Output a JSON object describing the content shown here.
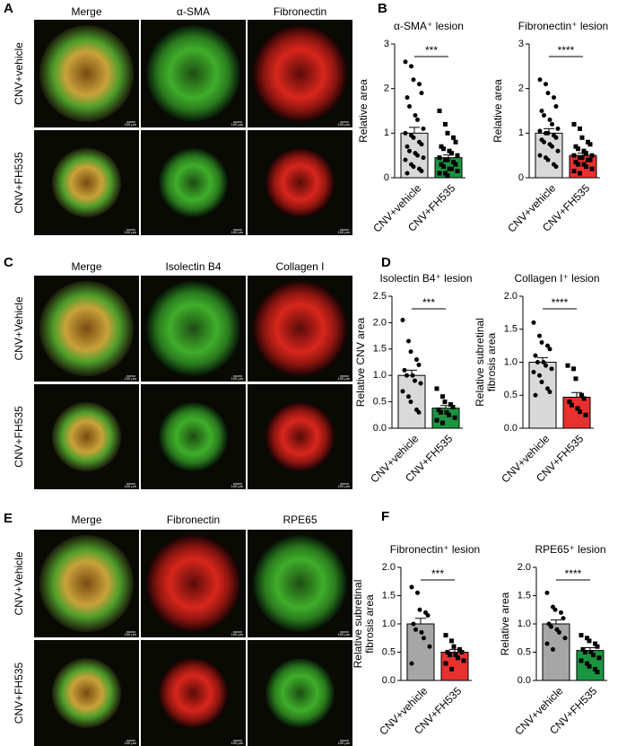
{
  "image_panels": [
    {
      "label": "A",
      "columns": [
        "Merge",
        "α-SMA",
        "Fibronectin"
      ],
      "rows": [
        "CNV+vehicle",
        "CNV+FH535"
      ]
    },
    {
      "label": "C",
      "columns": [
        "Merge",
        "Isolectin B4",
        "Collagen I"
      ],
      "rows": [
        "CNV+Vehicle",
        "CNV+FH535"
      ]
    },
    {
      "label": "E",
      "columns": [
        "Merge",
        "Fibronectin",
        "RPE65"
      ],
      "rows": [
        "CNV+Vehicle",
        "CNV+FH535"
      ]
    }
  ],
  "scale_bar_label": "100 μm",
  "chart_panel_labels": [
    "B",
    "D",
    "F"
  ],
  "chart_data": [
    {
      "type": "bar",
      "title": "α-SMA⁺ lesion",
      "y_label": [
        "Relative area"
      ],
      "categories": [
        "CNV+vehicle",
        "CNV+FH535"
      ],
      "colors": [
        "#d9d9d9",
        "#1a9641"
      ],
      "values": [
        1.0,
        0.45
      ],
      "errors": [
        0.13,
        0.06
      ],
      "points": [
        [
          2.6,
          2.5,
          2.2,
          2.1,
          1.9,
          1.8,
          1.6,
          1.4,
          1.3,
          1.1,
          1.0,
          0.95,
          0.9,
          0.8,
          0.75,
          0.7,
          0.6,
          0.55,
          0.5,
          0.45,
          0.4,
          0.3,
          0.25,
          0.2,
          0.15,
          0.1
        ],
        [
          1.5,
          1.2,
          1.0,
          0.9,
          0.8,
          0.7,
          0.65,
          0.6,
          0.55,
          0.5,
          0.45,
          0.4,
          0.4,
          0.35,
          0.3,
          0.3,
          0.25,
          0.2,
          0.2,
          0.15,
          0.1,
          0.1,
          0.05
        ]
      ],
      "ylim": [
        0,
        3
      ],
      "yticks": [
        0,
        1,
        2,
        3
      ],
      "significance": "***"
    },
    {
      "type": "bar",
      "title": "Fibronectin⁺ lesion",
      "y_label": [
        "Relative area"
      ],
      "categories": [
        "CNV+vehicle",
        "CNV+FH535"
      ],
      "colors": [
        "#d9d9d9",
        "#e8312f"
      ],
      "values": [
        1.0,
        0.5
      ],
      "errors": [
        0.1,
        0.05
      ],
      "points": [
        [
          2.2,
          2.1,
          1.9,
          1.8,
          1.6,
          1.5,
          1.4,
          1.3,
          1.2,
          1.1,
          1.05,
          1.0,
          1.0,
          0.95,
          0.9,
          0.85,
          0.8,
          0.75,
          0.7,
          0.6,
          0.5,
          0.45,
          0.4,
          0.3,
          0.25
        ],
        [
          1.2,
          1.1,
          0.9,
          0.8,
          0.75,
          0.7,
          0.65,
          0.6,
          0.55,
          0.5,
          0.5,
          0.45,
          0.45,
          0.4,
          0.4,
          0.35,
          0.3,
          0.3,
          0.25,
          0.2,
          0.15,
          0.1
        ]
      ],
      "ylim": [
        0,
        3
      ],
      "yticks": [
        0,
        1,
        2,
        3
      ],
      "significance": "****"
    },
    {
      "type": "bar",
      "title": "Isolectin B4⁺ lesion",
      "y_label": [
        "Relative CNV area"
      ],
      "categories": [
        "CNV+vehicle",
        "CNV+FH535"
      ],
      "colors": [
        "#d9d9d9",
        "#1a9641"
      ],
      "values": [
        1.0,
        0.38
      ],
      "errors": [
        0.1,
        0.05
      ],
      "points": [
        [
          2.05,
          1.65,
          1.45,
          1.3,
          1.2,
          1.1,
          1.0,
          1.0,
          0.9,
          0.85,
          0.7,
          0.6,
          0.5,
          0.35,
          0.3
        ],
        [
          0.75,
          0.6,
          0.5,
          0.45,
          0.4,
          0.35,
          0.3,
          0.3,
          0.25,
          0.2,
          0.15,
          0.1
        ]
      ],
      "ylim": [
        0,
        2.5
      ],
      "yticks": [
        {
          "value": 0,
          "label": "0.0"
        },
        0.5,
        {
          "value": 1,
          "label": "1.0"
        },
        1.5,
        {
          "value": 2,
          "label": "2.0"
        },
        2.5
      ],
      "significance": "***"
    },
    {
      "type": "bar",
      "title": "Collagen I⁺ lesion",
      "y_label": [
        "Relative subretinal",
        "fibrosis area"
      ],
      "categories": [
        "CNV+vehicle",
        "CNV+FH535"
      ],
      "colors": [
        "#d9d9d9",
        "#e8312f"
      ],
      "values": [
        1.0,
        0.47
      ],
      "errors": [
        0.07,
        0.07
      ],
      "points": [
        [
          1.6,
          1.4,
          1.3,
          1.25,
          1.2,
          1.1,
          1.0,
          1.0,
          0.95,
          0.9,
          0.85,
          0.8,
          0.7,
          0.6,
          0.55,
          0.5
        ],
        [
          0.95,
          0.9,
          0.75,
          0.5,
          0.45,
          0.4,
          0.35,
          0.3,
          0.25,
          0.2
        ]
      ],
      "ylim": [
        0,
        2
      ],
      "yticks": [
        {
          "value": 0,
          "label": "0.0"
        },
        0.5,
        {
          "value": 1,
          "label": "1.0"
        },
        1.5,
        {
          "value": 2,
          "label": "2.0"
        }
      ],
      "significance": "****"
    },
    {
      "type": "bar",
      "title": "Fibronectin⁺ lesion",
      "y_label": [
        "Relative subretinal",
        "fibrosis area"
      ],
      "categories": [
        "CNV+vehicle",
        "CNV+FH535"
      ],
      "colors": [
        "#a6a6a6",
        "#e8312f"
      ],
      "values": [
        1.0,
        0.5
      ],
      "errors": [
        0.1,
        0.05
      ],
      "points": [
        [
          1.65,
          1.55,
          1.25,
          1.2,
          1.15,
          1.0,
          0.9,
          0.85,
          0.75,
          0.6,
          0.3
        ],
        [
          0.8,
          0.7,
          0.6,
          0.55,
          0.5,
          0.5,
          0.45,
          0.45,
          0.4,
          0.35,
          0.3,
          0.2
        ]
      ],
      "ylim": [
        0,
        2
      ],
      "yticks": [
        {
          "value": 0,
          "label": "0.0"
        },
        0.5,
        {
          "value": 1,
          "label": "1.0"
        },
        1.5,
        {
          "value": 2,
          "label": "2.0"
        }
      ],
      "significance": "***"
    },
    {
      "type": "bar",
      "title": "RPE65⁺ lesion",
      "y_label": [
        "Relative area"
      ],
      "categories": [
        "CNV+vehicle",
        "CNV+FH535"
      ],
      "colors": [
        "#a6a6a6",
        "#1a9641"
      ],
      "values": [
        1.0,
        0.53
      ],
      "errors": [
        0.07,
        0.05
      ],
      "points": [
        [
          1.55,
          1.3,
          1.25,
          1.2,
          1.1,
          1.0,
          0.95,
          0.9,
          0.85,
          0.75,
          0.65,
          0.55
        ],
        [
          0.8,
          0.75,
          0.7,
          0.65,
          0.6,
          0.55,
          0.5,
          0.5,
          0.45,
          0.4,
          0.35,
          0.3,
          0.25,
          0.2,
          0.15
        ]
      ],
      "ylim": [
        0,
        2
      ],
      "yticks": [
        {
          "value": 0,
          "label": "0.0"
        },
        0.5,
        {
          "value": 1,
          "label": "1.0"
        },
        1.5,
        {
          "value": 2,
          "label": "2.0"
        }
      ],
      "significance": "****"
    }
  ]
}
